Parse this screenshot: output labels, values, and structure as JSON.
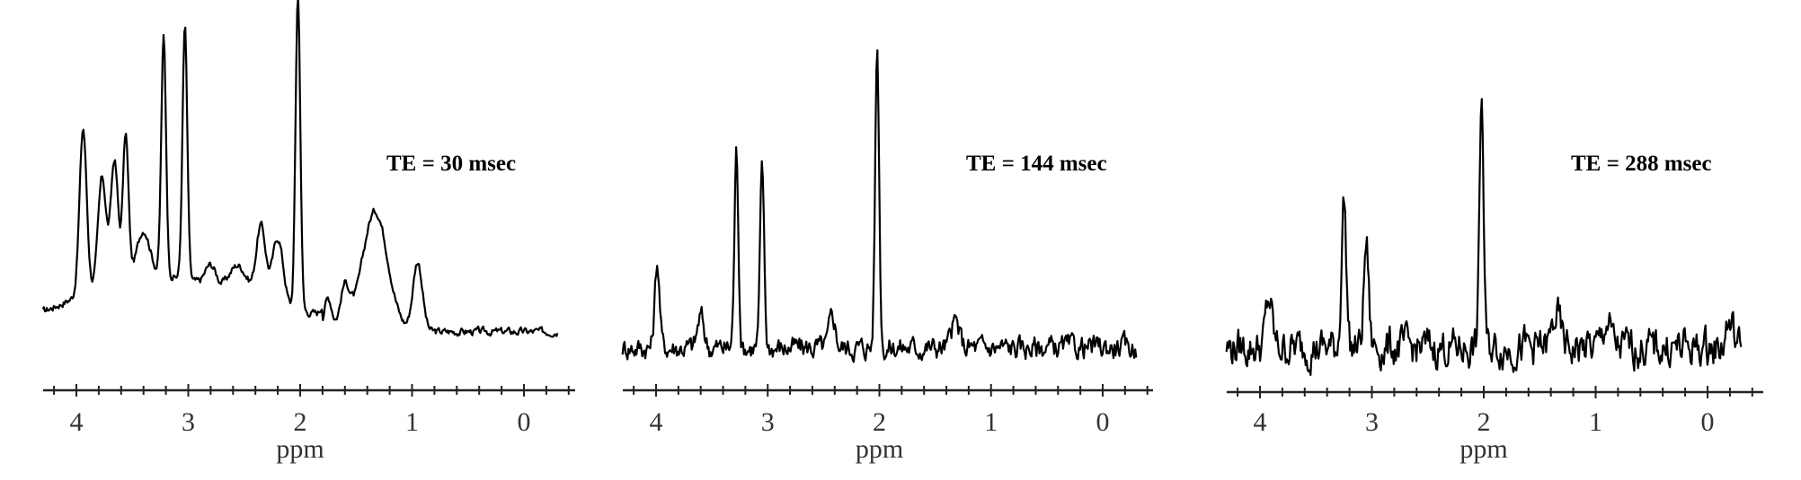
{
  "chart_data": [
    {
      "type": "line",
      "title": "TE = 30 msec",
      "xlabel": "ppm",
      "ylabel": "",
      "xlim": [
        4.3,
        -0.3
      ],
      "x_ticks": [
        4,
        3,
        2,
        1,
        0
      ],
      "series": [
        {
          "color": "#000000",
          "baseline": 0.1,
          "noise": 0.01,
          "peaks": [
            {
              "ppm": 3.94,
              "height": 0.52,
              "width": 0.045
            },
            {
              "ppm": 3.77,
              "height": 0.34,
              "width": 0.05
            },
            {
              "ppm": 3.66,
              "height": 0.38,
              "width": 0.045
            },
            {
              "ppm": 3.56,
              "height": 0.45,
              "width": 0.035
            },
            {
              "ppm": 3.4,
              "height": 0.14,
              "width": 0.08
            },
            {
              "ppm": 3.22,
              "height": 0.75,
              "width": 0.03
            },
            {
              "ppm": 3.03,
              "height": 0.8,
              "width": 0.03
            },
            {
              "ppm": 2.8,
              "height": 0.07,
              "width": 0.07
            },
            {
              "ppm": 2.55,
              "height": 0.1,
              "width": 0.12
            },
            {
              "ppm": 2.35,
              "height": 0.24,
              "width": 0.06
            },
            {
              "ppm": 2.2,
              "height": 0.22,
              "width": 0.07
            },
            {
              "ppm": 2.02,
              "height": 1.0,
              "width": 0.03
            },
            {
              "ppm": 1.75,
              "height": 0.1,
              "width": 0.05
            },
            {
              "ppm": 1.6,
              "height": 0.13,
              "width": 0.06
            },
            {
              "ppm": 1.33,
              "height": 0.38,
              "width": 0.16
            },
            {
              "ppm": 0.95,
              "height": 0.22,
              "width": 0.06
            }
          ]
        }
      ]
    },
    {
      "type": "line",
      "title": "TE = 144 msec",
      "xlabel": "ppm",
      "ylabel": "",
      "xlim": [
        4.3,
        -0.3
      ],
      "x_ticks": [
        4,
        3,
        2,
        1,
        0
      ],
      "series": [
        {
          "color": "#000000",
          "baseline": 0.05,
          "noise": 0.03,
          "peaks": [
            {
              "ppm": 3.99,
              "height": 0.27,
              "width": 0.03
            },
            {
              "ppm": 3.6,
              "height": 0.1,
              "width": 0.04
            },
            {
              "ppm": 3.28,
              "height": 0.62,
              "width": 0.025
            },
            {
              "ppm": 3.05,
              "height": 0.57,
              "width": 0.025
            },
            {
              "ppm": 2.42,
              "height": 0.1,
              "width": 0.04
            },
            {
              "ppm": 2.02,
              "height": 0.95,
              "width": 0.025
            },
            {
              "ppm": 1.32,
              "height": 0.08,
              "width": 0.05
            }
          ]
        }
      ]
    },
    {
      "type": "line",
      "title": "TE = 288 msec",
      "xlabel": "ppm",
      "ylabel": "",
      "xlim": [
        4.3,
        -0.3
      ],
      "x_ticks": [
        4,
        3,
        2,
        1,
        0
      ],
      "series": [
        {
          "color": "#222222",
          "baseline": 0.05,
          "noise": 0.05,
          "peaks": [
            {
              "ppm": 3.92,
              "height": 0.15,
              "width": 0.04
            },
            {
              "ppm": 3.25,
              "height": 0.47,
              "width": 0.03
            },
            {
              "ppm": 3.05,
              "height": 0.33,
              "width": 0.03
            },
            {
              "ppm": 2.02,
              "height": 0.8,
              "width": 0.025
            },
            {
              "ppm": 1.35,
              "height": 0.1,
              "width": 0.05
            },
            {
              "ppm": 0.9,
              "height": 0.08,
              "width": 0.05
            },
            {
              "ppm": -0.2,
              "height": 0.08,
              "width": 0.05
            }
          ]
        }
      ]
    }
  ]
}
